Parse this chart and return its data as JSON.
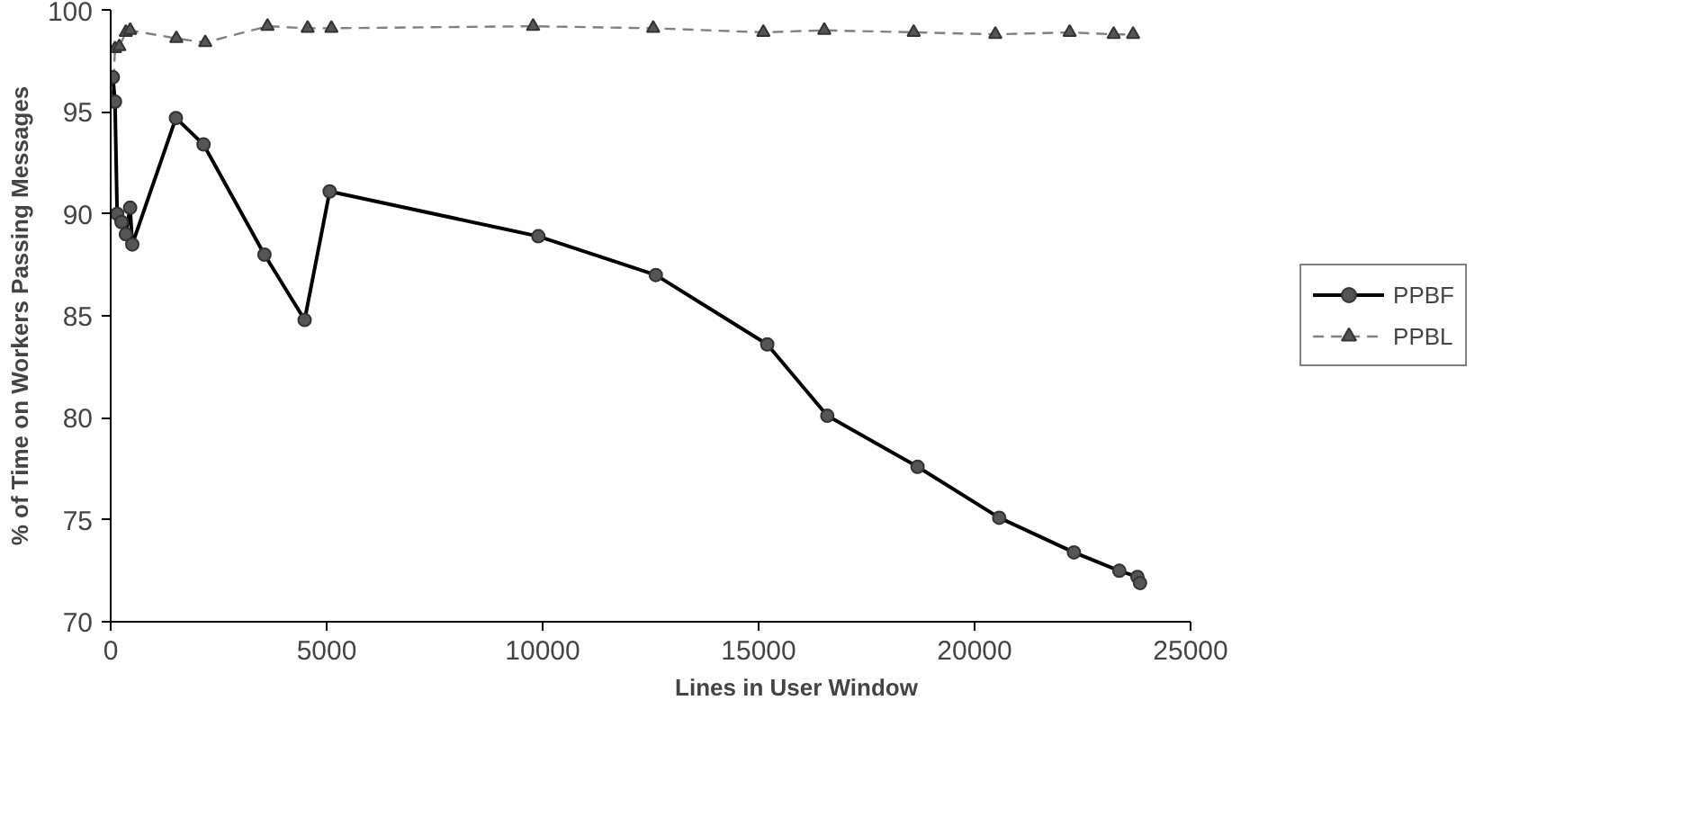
{
  "chart_data": {
    "type": "line",
    "xlabel": "Lines in User Window",
    "ylabel": "% of Time on Workers Passing Messages",
    "xlim": [
      0,
      25000
    ],
    "xticks": [
      0,
      5000,
      10000,
      15000,
      20000,
      25000
    ],
    "ylim": [
      70,
      100
    ],
    "yticks": [
      70,
      75,
      80,
      85,
      90,
      95,
      100
    ],
    "grid": false,
    "legend": "right",
    "series": [
      {
        "name": "PPBF",
        "color": "#000000",
        "marker": "circle",
        "line_style": "solid",
        "x": [
          50,
          100,
          150,
          250,
          350,
          450,
          500,
          1510,
          2150,
          3560,
          4490,
          5070,
          9900,
          12620,
          15200,
          16590,
          18680,
          20570,
          22300,
          23350,
          23770,
          23830
        ],
        "values": [
          96.7,
          95.5,
          90.0,
          89.6,
          89.0,
          90.3,
          88.5,
          94.7,
          93.4,
          88.0,
          84.8,
          91.1,
          88.9,
          87.0,
          83.6,
          80.1,
          77.6,
          75.1,
          73.4,
          72.5,
          72.2,
          71.9
        ]
      },
      {
        "name": "PPBL",
        "color": "#808080",
        "marker": "triangle",
        "line_style": "dashed",
        "x": [
          50,
          100,
          200,
          350,
          450,
          1520,
          2190,
          3630,
          4560,
          5110,
          9780,
          12560,
          15110,
          16520,
          18590,
          20480,
          22200,
          23220,
          23670
        ],
        "values": [
          95.7,
          98.1,
          98.2,
          98.9,
          99.0,
          98.6,
          98.4,
          99.2,
          99.1,
          99.1,
          99.2,
          99.1,
          98.9,
          99.0,
          98.9,
          98.8,
          98.9,
          98.8,
          98.8
        ]
      }
    ]
  }
}
